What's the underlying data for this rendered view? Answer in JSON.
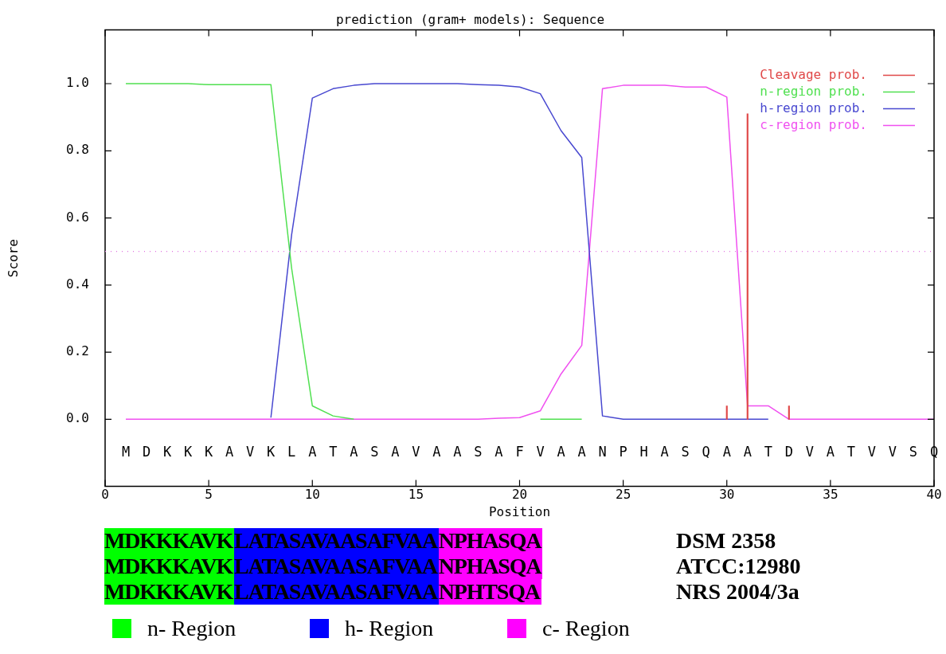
{
  "chart_data": [
    {
      "type": "line",
      "title": "prediction (gram+ models): Sequence",
      "xlabel": "Position",
      "ylabel": "Score",
      "x": [
        1,
        2,
        3,
        4,
        5,
        6,
        7,
        8,
        9,
        10,
        11,
        12,
        13,
        14,
        15,
        16,
        17,
        18,
        19,
        20,
        21,
        22,
        23,
        24,
        25,
        26,
        27,
        28,
        29,
        30,
        31,
        32,
        33,
        34,
        35,
        36,
        37,
        38,
        39,
        40
      ],
      "series": [
        {
          "name": "Cleavage prob.",
          "type": "bar",
          "color": "#e04848",
          "x": [
            30,
            31,
            33
          ],
          "values": [
            0.04,
            0.91,
            0.04
          ]
        },
        {
          "name": "n-region prob.",
          "color": "#50e050",
          "values": [
            1.0,
            1.0,
            1.0,
            1.0,
            0.997,
            0.997,
            0.997,
            0.997,
            0.45,
            0.04,
            0.01,
            0.0,
            null,
            null,
            null,
            null,
            null,
            null,
            null,
            null,
            0,
            0,
            0,
            null,
            null,
            null,
            null,
            null,
            null,
            null,
            null,
            null,
            null,
            null,
            null,
            null,
            null,
            null,
            null,
            null
          ]
        },
        {
          "name": "h-region prob.",
          "color": "#4848d0",
          "values": [
            null,
            null,
            null,
            null,
            null,
            null,
            null,
            0.005,
            0.55,
            0.957,
            0.985,
            0.995,
            1.0,
            1.0,
            1.0,
            1.0,
            1.0,
            0.997,
            0.995,
            0.99,
            0.97,
            0.86,
            0.78,
            0.01,
            0.0,
            0,
            0,
            0,
            0,
            0,
            0,
            0,
            null,
            null,
            null,
            null,
            null,
            null,
            null,
            null
          ]
        },
        {
          "name": "c-region prob.",
          "color": "#f050f0",
          "values": [
            0,
            0,
            0,
            0,
            0,
            0,
            0,
            0,
            0,
            0,
            0,
            0,
            0,
            0,
            0,
            0,
            0,
            0,
            0.003,
            0.005,
            0.025,
            0.135,
            0.22,
            0.985,
            0.995,
            0.995,
            0.995,
            0.99,
            0.99,
            0.96,
            0.04,
            0.04,
            0.0,
            0,
            0,
            0,
            0,
            0,
            0,
            0
          ]
        }
      ],
      "xlim": [
        0,
        40
      ],
      "xticks": [
        0,
        5,
        10,
        15,
        20,
        25,
        30,
        35,
        40
      ],
      "ylim": [
        -0.2,
        1.16
      ],
      "yticks": [
        {
          "value": 0,
          "label": "0.0"
        },
        {
          "value": 0.2,
          "label": "0.2"
        },
        {
          "value": 0.4,
          "label": "0.4"
        },
        {
          "value": 0.6,
          "label": "0.6"
        },
        {
          "value": 0.8,
          "label": "0.8"
        },
        {
          "value": 1,
          "label": "1.0"
        }
      ],
      "ref_lines": [
        {
          "axis": "y",
          "value": 0.5,
          "color": "#e070e0",
          "line_style": "dotted"
        }
      ],
      "legend": "top right",
      "marker": "none",
      "annotations": [
        "M",
        "D",
        "K",
        "K",
        "K",
        "A",
        "V",
        "K",
        "L",
        "A",
        "T",
        "A",
        "S",
        "A",
        "V",
        "A",
        "A",
        "S",
        "A",
        "F",
        "V",
        "A",
        "A",
        "N",
        "P",
        "H",
        "A",
        "S",
        "Q",
        "A",
        "A",
        "T",
        "D",
        "V",
        "A",
        "T",
        "V",
        "V",
        "S",
        "Q"
      ]
    },
    {
      "type": "other",
      "y2_categories": [
        "DSM 2358",
        "ATCC:12980",
        "NRS 2004/3a"
      ],
      "legend": "bottom",
      "series": [
        {
          "name": "n- Region",
          "color": "#00ff00"
        },
        {
          "name": "h- Region",
          "color": "#0000ff"
        },
        {
          "name": "c- Region",
          "color": "#ff00ff"
        }
      ],
      "cell_labels": [
        [
          "MDKKKAVK",
          "LATASAVAASAFVAA",
          "NPHASQA"
        ],
        [
          "MDKKKAVK",
          "LATASAVAASAFVAA",
          "NPHASQA"
        ],
        [
          "MDKKKAVK",
          "LATASAVAASAFVAA",
          "NPHTSQA"
        ]
      ]
    }
  ]
}
